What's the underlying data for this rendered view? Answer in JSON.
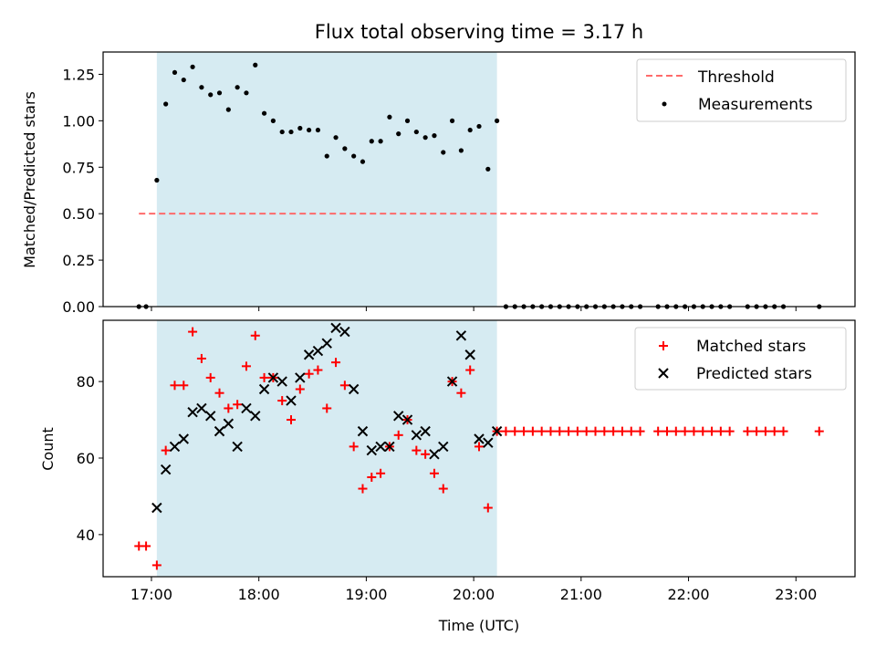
{
  "chart_data": {
    "title": "Flux total observing time = 3.17 h",
    "xlabel": "Time (UTC)",
    "x_ticks": [
      "17:00",
      "18:00",
      "19:00",
      "20:00",
      "21:00",
      "22:00",
      "23:00"
    ],
    "x_range": [
      "16:33",
      "23:33"
    ],
    "shaded_interval": {
      "start": "17:03",
      "end": "20:13",
      "color": "#add8e6"
    },
    "panels": [
      {
        "type": "scatter",
        "ylabel": "Matched/Predicted stars",
        "ylim": [
          0,
          1.37
        ],
        "y_ticks": [
          "0.00",
          "0.25",
          "0.50",
          "0.75",
          "1.00",
          "1.25"
        ],
        "legend_position": "upper right",
        "series": [
          {
            "name": "Threshold",
            "kind": "hline",
            "color": "#ff6b6b",
            "y": 0.5,
            "x_start": "16:53",
            "x_end": "23:13"
          },
          {
            "name": "Measurements",
            "kind": "points",
            "color": "#000000",
            "points": [
              [
                "16:53",
                0
              ],
              [
                "16:57",
                0
              ],
              [
                "17:03",
                0.68
              ],
              [
                "17:08",
                1.09
              ],
              [
                "17:13",
                1.26
              ],
              [
                "17:18",
                1.22
              ],
              [
                "17:23",
                1.29
              ],
              [
                "17:28",
                1.18
              ],
              [
                "17:33",
                1.14
              ],
              [
                "17:38",
                1.15
              ],
              [
                "17:43",
                1.06
              ],
              [
                "17:48",
                1.18
              ],
              [
                "17:53",
                1.15
              ],
              [
                "17:58",
                1.3
              ],
              [
                "18:03",
                1.04
              ],
              [
                "18:08",
                1.0
              ],
              [
                "18:13",
                0.94
              ],
              [
                "18:18",
                0.94
              ],
              [
                "18:23",
                0.96
              ],
              [
                "18:28",
                0.95
              ],
              [
                "18:33",
                0.95
              ],
              [
                "18:38",
                0.81
              ],
              [
                "18:43",
                0.91
              ],
              [
                "18:48",
                0.85
              ],
              [
                "18:53",
                0.81
              ],
              [
                "18:58",
                0.78
              ],
              [
                "19:03",
                0.89
              ],
              [
                "19:08",
                0.89
              ],
              [
                "19:13",
                1.02
              ],
              [
                "19:18",
                0.93
              ],
              [
                "19:23",
                1.0
              ],
              [
                "19:28",
                0.94
              ],
              [
                "19:33",
                0.91
              ],
              [
                "19:38",
                0.92
              ],
              [
                "19:43",
                0.83
              ],
              [
                "19:48",
                1.0
              ],
              [
                "19:53",
                0.84
              ],
              [
                "19:58",
                0.95
              ],
              [
                "20:03",
                0.97
              ],
              [
                "20:08",
                0.74
              ],
              [
                "20:13",
                1.0
              ],
              [
                "20:18",
                0
              ],
              [
                "20:23",
                0
              ],
              [
                "20:28",
                0
              ],
              [
                "20:33",
                0
              ],
              [
                "20:38",
                0
              ],
              [
                "20:43",
                0
              ],
              [
                "20:48",
                0
              ],
              [
                "20:53",
                0
              ],
              [
                "20:58",
                0
              ],
              [
                "21:03",
                0
              ],
              [
                "21:08",
                0
              ],
              [
                "21:13",
                0
              ],
              [
                "21:18",
                0
              ],
              [
                "21:23",
                0
              ],
              [
                "21:28",
                0
              ],
              [
                "21:33",
                0
              ],
              [
                "21:43",
                0
              ],
              [
                "21:48",
                0
              ],
              [
                "21:53",
                0
              ],
              [
                "21:58",
                0
              ],
              [
                "22:03",
                0
              ],
              [
                "22:08",
                0
              ],
              [
                "22:13",
                0
              ],
              [
                "22:18",
                0
              ],
              [
                "22:23",
                0
              ],
              [
                "22:33",
                0
              ],
              [
                "22:38",
                0
              ],
              [
                "22:43",
                0
              ],
              [
                "22:48",
                0
              ],
              [
                "22:53",
                0
              ],
              [
                "23:13",
                0
              ]
            ]
          }
        ]
      },
      {
        "type": "scatter",
        "ylabel": "Count",
        "ylim": [
          29,
          96
        ],
        "y_ticks": [
          "40",
          "60",
          "80"
        ],
        "legend_position": "upper right",
        "series": [
          {
            "name": "Matched stars",
            "marker": "plus",
            "color": "#ff0000",
            "points": [
              [
                "16:53",
                37
              ],
              [
                "16:57",
                37
              ],
              [
                "17:03",
                32
              ],
              [
                "17:08",
                62
              ],
              [
                "17:13",
                79
              ],
              [
                "17:18",
                79
              ],
              [
                "17:23",
                93
              ],
              [
                "17:28",
                86
              ],
              [
                "17:33",
                81
              ],
              [
                "17:38",
                77
              ],
              [
                "17:43",
                73
              ],
              [
                "17:48",
                74
              ],
              [
                "17:53",
                84
              ],
              [
                "17:58",
                92
              ],
              [
                "18:03",
                81
              ],
              [
                "18:08",
                81
              ],
              [
                "18:13",
                75
              ],
              [
                "18:18",
                70
              ],
              [
                "18:23",
                78
              ],
              [
                "18:28",
                82
              ],
              [
                "18:33",
                83
              ],
              [
                "18:38",
                73
              ],
              [
                "18:43",
                85
              ],
              [
                "18:48",
                79
              ],
              [
                "18:53",
                63
              ],
              [
                "18:58",
                52
              ],
              [
                "19:03",
                55
              ],
              [
                "19:08",
                56
              ],
              [
                "19:13",
                63
              ],
              [
                "19:18",
                66
              ],
              [
                "19:23",
                70
              ],
              [
                "19:28",
                62
              ],
              [
                "19:33",
                61
              ],
              [
                "19:38",
                56
              ],
              [
                "19:43",
                52
              ],
              [
                "19:48",
                80
              ],
              [
                "19:53",
                77
              ],
              [
                "19:58",
                83
              ],
              [
                "20:03",
                63
              ],
              [
                "20:08",
                47
              ],
              [
                "20:13",
                67
              ],
              [
                "20:18",
                67
              ],
              [
                "20:23",
                67
              ],
              [
                "20:28",
                67
              ],
              [
                "20:33",
                67
              ],
              [
                "20:38",
                67
              ],
              [
                "20:43",
                67
              ],
              [
                "20:48",
                67
              ],
              [
                "20:53",
                67
              ],
              [
                "20:58",
                67
              ],
              [
                "21:03",
                67
              ],
              [
                "21:08",
                67
              ],
              [
                "21:13",
                67
              ],
              [
                "21:18",
                67
              ],
              [
                "21:23",
                67
              ],
              [
                "21:28",
                67
              ],
              [
                "21:33",
                67
              ],
              [
                "21:43",
                67
              ],
              [
                "21:48",
                67
              ],
              [
                "21:53",
                67
              ],
              [
                "21:58",
                67
              ],
              [
                "22:03",
                67
              ],
              [
                "22:08",
                67
              ],
              [
                "22:13",
                67
              ],
              [
                "22:18",
                67
              ],
              [
                "22:23",
                67
              ],
              [
                "22:33",
                67
              ],
              [
                "22:38",
                67
              ],
              [
                "22:43",
                67
              ],
              [
                "22:48",
                67
              ],
              [
                "22:53",
                67
              ],
              [
                "23:13",
                67
              ]
            ]
          },
          {
            "name": "Predicted stars",
            "marker": "x",
            "color": "#000000",
            "points": [
              [
                "17:03",
                47
              ],
              [
                "17:08",
                57
              ],
              [
                "17:13",
                63
              ],
              [
                "17:18",
                65
              ],
              [
                "17:23",
                72
              ],
              [
                "17:28",
                73
              ],
              [
                "17:33",
                71
              ],
              [
                "17:38",
                67
              ],
              [
                "17:43",
                69
              ],
              [
                "17:48",
                63
              ],
              [
                "17:53",
                73
              ],
              [
                "17:58",
                71
              ],
              [
                "18:03",
                78
              ],
              [
                "18:08",
                81
              ],
              [
                "18:13",
                80
              ],
              [
                "18:18",
                75
              ],
              [
                "18:23",
                81
              ],
              [
                "18:28",
                87
              ],
              [
                "18:33",
                88
              ],
              [
                "18:38",
                90
              ],
              [
                "18:43",
                94
              ],
              [
                "18:48",
                93
              ],
              [
                "18:53",
                78
              ],
              [
                "18:58",
                67
              ],
              [
                "19:03",
                62
              ],
              [
                "19:08",
                63
              ],
              [
                "19:13",
                63
              ],
              [
                "19:18",
                71
              ],
              [
                "19:23",
                70
              ],
              [
                "19:28",
                66
              ],
              [
                "19:33",
                67
              ],
              [
                "19:38",
                61
              ],
              [
                "19:43",
                63
              ],
              [
                "19:48",
                80
              ],
              [
                "19:53",
                92
              ],
              [
                "19:58",
                87
              ],
              [
                "20:03",
                65
              ],
              [
                "20:08",
                64
              ],
              [
                "20:13",
                67
              ]
            ]
          }
        ]
      }
    ]
  }
}
